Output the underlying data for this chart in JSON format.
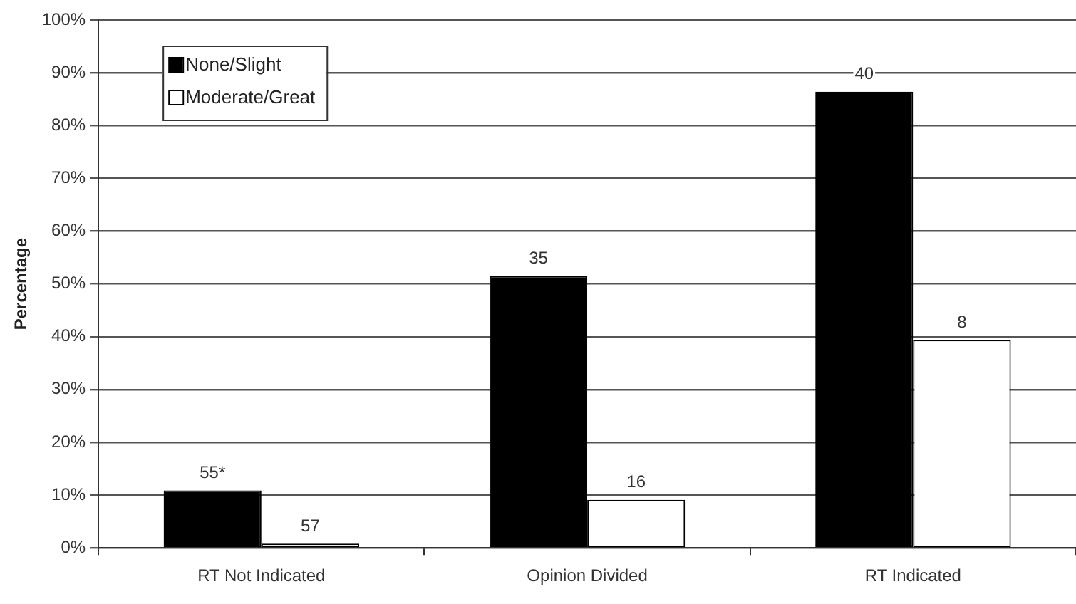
{
  "chart_data": {
    "type": "bar",
    "ylabel": "Percentage",
    "categories": [
      "RT Not Indicated",
      "Opinion Divided",
      "RT Indicated"
    ],
    "series": [
      {
        "name": "None/Slight",
        "color": "#000000",
        "values": [
          10.9,
          51.5,
          86.4
        ]
      },
      {
        "name": "Moderate/Great",
        "color": "#ffffff",
        "values": [
          0.8,
          9.1,
          39.4
        ]
      }
    ],
    "annotations": [
      {
        "text": "55*",
        "x": "RT Not Indicated",
        "y": 10.9
      },
      {
        "text": "57",
        "x": "RT Not Indicated",
        "y": 0.8
      },
      {
        "text": "35",
        "x": "Opinion Divided",
        "y": 51.5
      },
      {
        "text": "16",
        "x": "Opinion Divided",
        "y": 9.1
      },
      {
        "text": "40",
        "x": "RT Indicated",
        "y": 86.4
      },
      {
        "text": "8",
        "x": "RT Indicated",
        "y": 39.4
      }
    ],
    "ylim": [
      0,
      100
    ],
    "yticks": [
      {
        "value": 0,
        "label": "0%"
      },
      {
        "value": 10,
        "label": "10%"
      },
      {
        "value": 20,
        "label": "20%"
      },
      {
        "value": 30,
        "label": "30%"
      },
      {
        "value": 40,
        "label": "40%"
      },
      {
        "value": 50,
        "label": "50%"
      },
      {
        "value": 60,
        "label": "60%"
      },
      {
        "value": 70,
        "label": "70%"
      },
      {
        "value": 80,
        "label": "80%"
      },
      {
        "value": 90,
        "label": "90%"
      },
      {
        "value": 100,
        "label": "100%"
      }
    ],
    "grid": "y",
    "legend": "top left"
  }
}
